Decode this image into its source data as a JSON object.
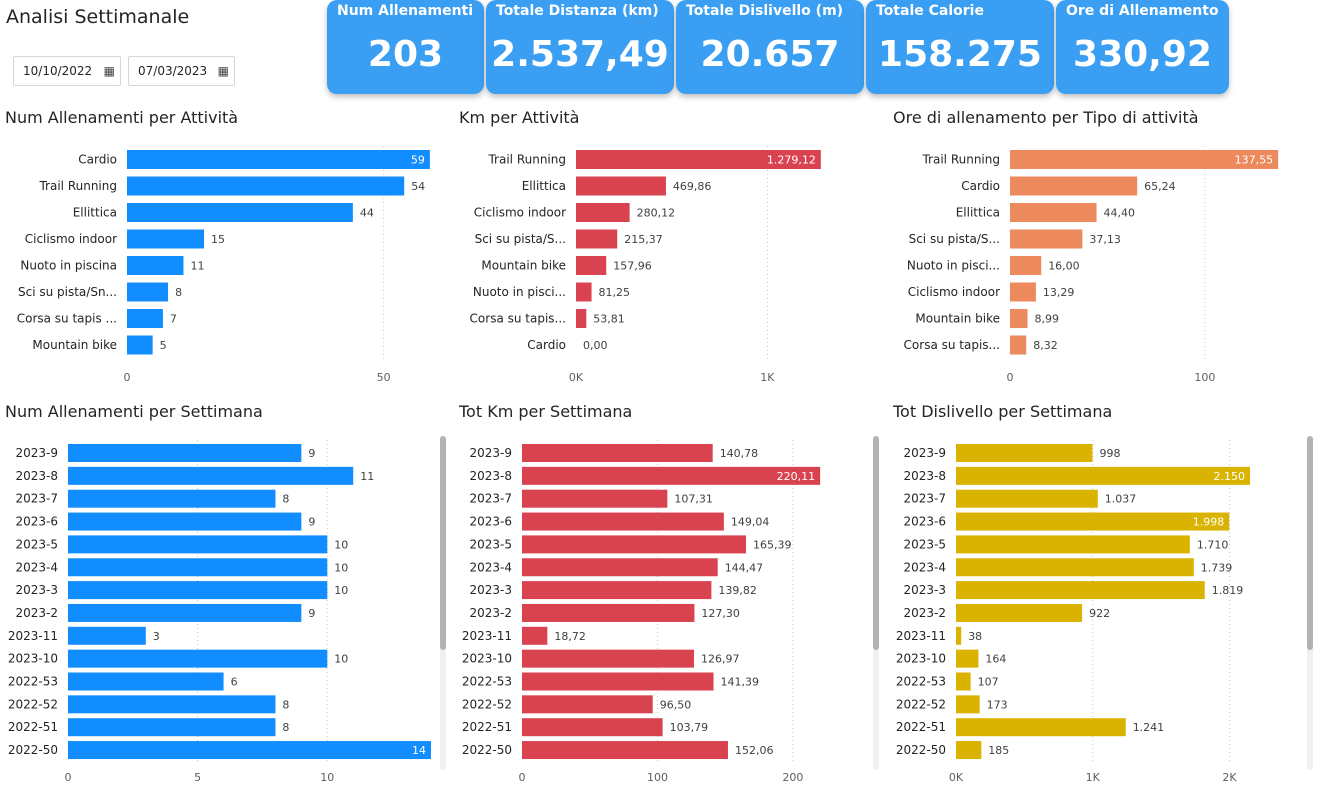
{
  "page": {
    "title": "Analisi Settimanale"
  },
  "filters": {
    "date_from": "10/10/2022",
    "date_to": "07/03/2023",
    "calendar_icon": "calendar-icon"
  },
  "kpis": [
    {
      "title": "Num Allenamenti",
      "value": "203"
    },
    {
      "title": "Totale Distanza (km)",
      "value": "2.537,49"
    },
    {
      "title": "Totale Dislivello (m)",
      "value": "20.657"
    },
    {
      "title": "Totale Calorie",
      "value": "158.275"
    },
    {
      "title": "Ore di Allenamento",
      "value": "330,92"
    }
  ],
  "colors": {
    "kpi": "#3a9ff3",
    "blue": "#118dff",
    "red": "#d9434f",
    "orange": "#ec8a5e",
    "yellow": "#d9b300"
  },
  "chart_data": [
    {
      "id": "c1",
      "type": "bar",
      "title": "Num Allenamenti per Attività",
      "categories": [
        "Cardio",
        "Trail Running",
        "Ellittica",
        "Ciclismo indoor",
        "Nuoto in piscina",
        "Sci su pista/Sn...",
        "Corsa su tapis ...",
        "Mountain bike"
      ],
      "values": [
        59,
        54,
        44,
        15,
        11,
        8,
        7,
        5
      ],
      "labels": [
        "59",
        "54",
        "44",
        "15",
        "11",
        "8",
        "7",
        "5"
      ],
      "xlim": [
        0,
        60
      ],
      "ticks": [
        0,
        50
      ],
      "tick_labels": [
        "0",
        "50"
      ],
      "color": "#118dff",
      "grid": true
    },
    {
      "id": "c2",
      "type": "bar",
      "title": "Km per Attività",
      "categories": [
        "Trail Running",
        "Ellittica",
        "Ciclismo indoor",
        "Sci su pista/S...",
        "Mountain bike",
        "Nuoto in pisci...",
        "Corsa su tapis...",
        "Cardio"
      ],
      "values": [
        1279.12,
        469.86,
        280.12,
        215.37,
        157.96,
        81.25,
        53.81,
        0
      ],
      "labels": [
        "1.279,12",
        "469,86",
        "280,12",
        "215,37",
        "157,96",
        "81,25",
        "53,81",
        "0,00"
      ],
      "xlim": [
        0,
        1280
      ],
      "ticks": [
        0,
        1000
      ],
      "tick_labels": [
        "0K",
        "1K"
      ],
      "color": "#d9434f",
      "grid": true
    },
    {
      "id": "c3",
      "type": "bar",
      "title": "Ore di allenamento per Tipo di attività",
      "categories": [
        "Trail Running",
        "Cardio",
        "Ellittica",
        "Sci su pista/S...",
        "Nuoto in pisci...",
        "Ciclismo indoor",
        "Mountain bike",
        "Corsa su tapis..."
      ],
      "values": [
        137.55,
        65.24,
        44.4,
        37.13,
        16.0,
        13.29,
        8.99,
        8.32
      ],
      "labels": [
        "137,55",
        "65,24",
        "44,40",
        "37,13",
        "16,00",
        "13,29",
        "8,99",
        "8,32"
      ],
      "xlim": [
        0,
        138
      ],
      "ticks": [
        0,
        100
      ],
      "tick_labels": [
        "0",
        "100"
      ],
      "color": "#ec8a5e",
      "grid": true
    },
    {
      "id": "c4",
      "type": "bar",
      "title": "Num Allenamenti per Settimana",
      "categories": [
        "2023-9",
        "2023-8",
        "2023-7",
        "2023-6",
        "2023-5",
        "2023-4",
        "2023-3",
        "2023-2",
        "2023-11",
        "2023-10",
        "2022-53",
        "2022-52",
        "2022-51",
        "2022-50"
      ],
      "values": [
        9,
        11,
        8,
        9,
        10,
        10,
        10,
        9,
        3,
        10,
        6,
        8,
        8,
        14
      ],
      "labels": [
        "9",
        "11",
        "8",
        "9",
        "10",
        "10",
        "10",
        "9",
        "3",
        "10",
        "6",
        "8",
        "8",
        "14"
      ],
      "xlim": [
        0,
        14
      ],
      "ticks": [
        0,
        5,
        10
      ],
      "tick_labels": [
        "0",
        "5",
        "10"
      ],
      "color": "#118dff",
      "grid": true
    },
    {
      "id": "c5",
      "type": "bar",
      "title": "Tot Km per Settimana",
      "categories": [
        "2023-9",
        "2023-8",
        "2023-7",
        "2023-6",
        "2023-5",
        "2023-4",
        "2023-3",
        "2023-2",
        "2023-11",
        "2023-10",
        "2022-53",
        "2022-52",
        "2022-51",
        "2022-50"
      ],
      "values": [
        140.78,
        220.11,
        107.31,
        149.04,
        165.39,
        144.47,
        139.82,
        127.3,
        18.72,
        126.97,
        141.39,
        96.5,
        103.79,
        152.06
      ],
      "labels": [
        "140,78",
        "220,11",
        "107,31",
        "149,04",
        "165,39",
        "144,47",
        "139,82",
        "127,30",
        "18,72",
        "126,97",
        "141,39",
        "96,50",
        "103,79",
        "152,06"
      ],
      "xlim": [
        0,
        220
      ],
      "ticks": [
        0,
        100,
        200
      ],
      "tick_labels": [
        "0",
        "100",
        "200"
      ],
      "color": "#d9434f",
      "grid": true
    },
    {
      "id": "c6",
      "type": "bar",
      "title": "Tot Dislivello per Settimana",
      "categories": [
        "2023-9",
        "2023-8",
        "2023-7",
        "2023-6",
        "2023-5",
        "2023-4",
        "2023-3",
        "2023-2",
        "2023-11",
        "2023-10",
        "2022-53",
        "2022-52",
        "2022-51",
        "2022-50"
      ],
      "values": [
        998,
        2150,
        1037,
        1998,
        1710,
        1739,
        1819,
        922,
        38,
        164,
        107,
        173,
        1241,
        185
      ],
      "labels": [
        "998",
        "2.150",
        "1.037",
        "1.998",
        "1.710",
        "1.739",
        "1.819",
        "922",
        "38",
        "164",
        "107",
        "173",
        "1.241",
        "185"
      ],
      "xlim": [
        0,
        2150
      ],
      "ticks": [
        0,
        1000,
        2000
      ],
      "tick_labels": [
        "0K",
        "1K",
        "2K"
      ],
      "color": "#d9b300",
      "grid": true
    }
  ]
}
